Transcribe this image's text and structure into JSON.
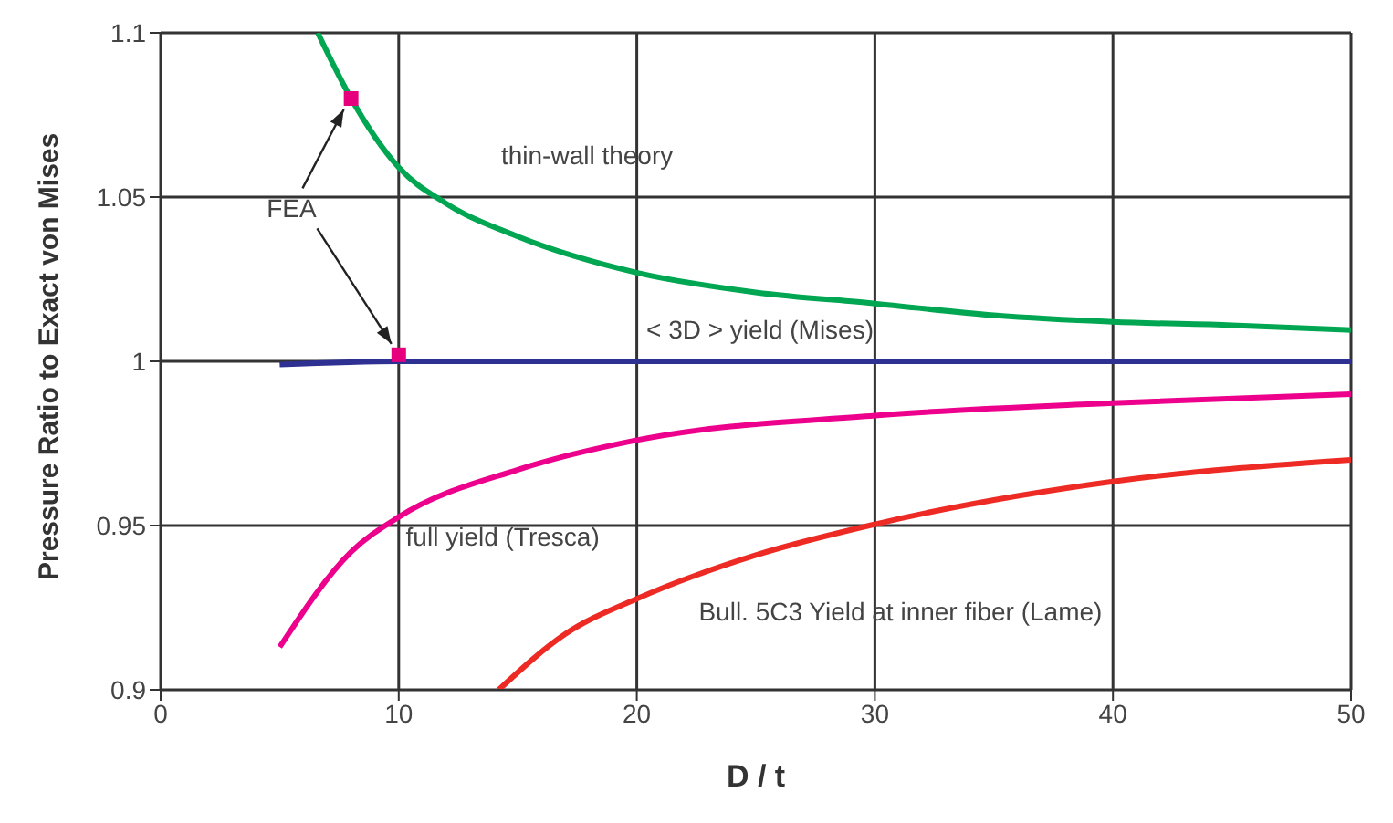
{
  "chart_data": {
    "type": "line",
    "xlabel": "D / t",
    "ylabel": "Pressure Ratio to Exact von Mises",
    "xlim": [
      0,
      50
    ],
    "xticks": [
      0,
      10,
      20,
      30,
      40,
      50
    ],
    "ylim": [
      0.9,
      1.1
    ],
    "yticks": [
      0.9,
      0.95,
      1,
      1.05,
      1.1
    ],
    "grid": true,
    "legend": false,
    "marker": "none",
    "line_style": "solid",
    "series": [
      {
        "name": "thin-wall theory",
        "color": "#00a651",
        "x": [
          6.6,
          8,
          10,
          12,
          15,
          20,
          25,
          30,
          35,
          40,
          45,
          50
        ],
        "values": [
          1.1,
          1.08,
          1.059,
          1.048,
          1.038,
          1.027,
          1.021,
          1.0176,
          1.014,
          1.012,
          1.011,
          1.0095
        ]
      },
      {
        "name": "< 3D > yield (Mises)",
        "color": "#2e3192",
        "x": [
          5,
          10,
          50
        ],
        "values": [
          0.999,
          1.0,
          1.0
        ]
      },
      {
        "name": "full yield (Tresca)",
        "color": "#ec008c",
        "x": [
          5,
          8,
          10,
          15,
          20,
          30,
          40,
          50
        ],
        "values": [
          0.913,
          0.942,
          0.9526,
          0.967,
          0.976,
          0.9835,
          0.9873,
          0.99
        ]
      },
      {
        "name": "Bull.  5C3 Yield at inner fiber (Lame)",
        "color": "#ee2a24",
        "x": [
          14.2,
          17,
          20,
          25,
          30,
          40,
          50
        ],
        "values": [
          0.9,
          0.917,
          0.9277,
          0.941,
          0.9504,
          0.9634,
          0.97
        ]
      },
      {
        "name": "FEA",
        "type": "scatter",
        "marker": "square",
        "color": "#e6007e",
        "x": [
          8,
          10
        ],
        "values": [
          1.08,
          1.002
        ]
      }
    ]
  }
}
